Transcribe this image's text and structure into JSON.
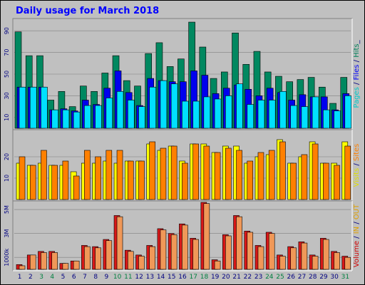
{
  "chart_data": [
    {
      "type": "bar",
      "title": "Daily usage for March 2018",
      "categories": [
        "1",
        "2",
        "3",
        "4",
        "5",
        "6",
        "7",
        "8",
        "9",
        "10",
        "11",
        "12",
        "13",
        "14",
        "15",
        "16",
        "17",
        "18",
        "19",
        "20",
        "21",
        "22",
        "23",
        "24",
        "25",
        "26",
        "27",
        "28",
        "29",
        "30",
        "31"
      ],
      "weekend_days": [
        "3",
        "4",
        "10",
        "11",
        "17",
        "18",
        "24",
        "25",
        "31"
      ],
      "panel": "pages-files-hits",
      "yticks": [
        "10",
        "30",
        "50",
        "70",
        "90"
      ],
      "ylim": [
        0,
        100
      ],
      "grid": true,
      "side_label_parts": [
        {
          "text": "Pages",
          "color": "#00c8c8"
        },
        {
          "text": " / ",
          "color": "#000080"
        },
        {
          "text": "Files",
          "color": "#0000ff"
        },
        {
          "text": " / ",
          "color": "#000080"
        },
        {
          "text": "Hits",
          "color": "#00805a"
        },
        {
          "text": "_",
          "color": "#000080"
        }
      ],
      "series": [
        {
          "name": "Hits",
          "color": "#008860",
          "values": [
            89,
            67,
            67,
            26,
            34,
            20,
            39,
            34,
            51,
            67,
            44,
            39,
            69,
            79,
            57,
            64,
            98,
            75,
            46,
            52,
            88,
            59,
            71,
            52,
            48,
            43,
            45,
            47,
            38,
            23,
            47
          ]
        },
        {
          "name": "Files",
          "color": "#0000ee",
          "values": [
            38,
            38,
            38,
            17,
            18,
            16,
            26,
            22,
            37,
            53,
            33,
            21,
            46,
            44,
            43,
            43,
            53,
            49,
            32,
            37,
            40,
            36,
            30,
            37,
            33,
            26,
            31,
            29,
            29,
            17,
            32
          ]
        },
        {
          "name": "Pages",
          "color": "#00e0ff",
          "values": [
            38,
            38,
            38,
            17,
            17,
            15,
            21,
            21,
            28,
            34,
            26,
            20,
            38,
            44,
            41,
            25,
            25,
            29,
            27,
            30,
            41,
            22,
            26,
            26,
            34,
            21,
            20,
            29,
            17,
            16,
            30
          ]
        }
      ]
    },
    {
      "type": "bar",
      "panel": "visits-sites",
      "yticks": [
        "10",
        "20"
      ],
      "ylim": [
        0,
        32
      ],
      "grid": true,
      "side_label_parts": [
        {
          "text": "Visits",
          "color": "#e0e000"
        },
        {
          "text": " / ",
          "color": "#000080"
        },
        {
          "text": "Sites",
          "color": "#ff8000"
        }
      ],
      "series": [
        {
          "name": "Visits",
          "color": "#ffff00",
          "values": [
            17,
            16,
            17,
            16,
            16,
            13,
            17,
            17,
            18,
            17,
            18,
            18,
            26,
            23,
            25,
            18,
            26,
            26,
            22,
            25,
            25,
            17,
            20,
            21,
            28,
            17,
            20,
            27,
            17,
            17,
            27
          ]
        },
        {
          "name": "Sites",
          "color": "#ff8000",
          "values": [
            20,
            16,
            23,
            16,
            18,
            11,
            23,
            20,
            23,
            23,
            18,
            18,
            27,
            24,
            25,
            17,
            26,
            25,
            22,
            24,
            23,
            18,
            22,
            23,
            27,
            17,
            21,
            26,
            17,
            16,
            25
          ]
        }
      ]
    },
    {
      "type": "bar",
      "panel": "volume",
      "yticks": [
        "1000k",
        "3M",
        "5M"
      ],
      "ytick_values": [
        1.0,
        3.0,
        5.0
      ],
      "ylim": [
        0,
        5.6
      ],
      "grid": true,
      "side_label_parts": [
        {
          "text": "Volume",
          "color": "#d00000"
        },
        {
          "text": " / ",
          "color": "#000080"
        },
        {
          "text": "IN",
          "color": "#e0a000"
        },
        {
          "text": " / ",
          "color": "#000080"
        },
        {
          "text": "OUT",
          "color": "#e0a000"
        }
      ],
      "series": [
        {
          "name": "Volume",
          "color": "#d81818",
          "values": [
            0.4,
            1.2,
            1.5,
            1.5,
            0.5,
            0.7,
            2.0,
            1.9,
            2.5,
            4.5,
            1.6,
            1.2,
            2.0,
            3.4,
            3.0,
            3.8,
            2.6,
            5.6,
            0.8,
            2.9,
            4.5,
            3.2,
            2.0,
            3.1,
            1.2,
            1.9,
            2.3,
            1.2,
            2.6,
            1.5,
            1.1
          ]
        },
        {
          "name": "OUT",
          "color": "#f09858",
          "values": [
            0.3,
            1.2,
            1.4,
            1.4,
            0.5,
            0.7,
            1.9,
            1.8,
            2.4,
            4.4,
            1.5,
            1.1,
            1.9,
            3.3,
            2.9,
            3.7,
            2.5,
            5.5,
            0.7,
            2.8,
            4.4,
            3.1,
            1.9,
            3.0,
            1.1,
            1.8,
            2.2,
            1.1,
            2.5,
            1.4,
            1.0
          ]
        }
      ]
    }
  ]
}
